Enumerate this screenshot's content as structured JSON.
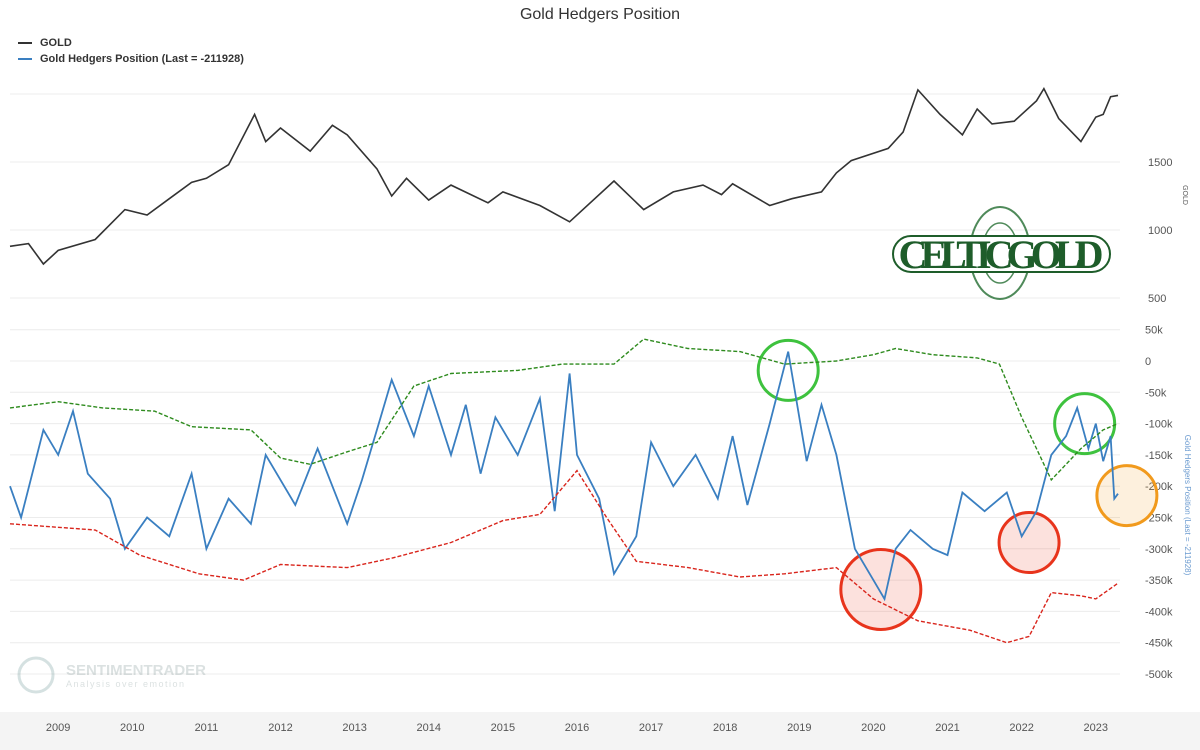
{
  "chart_data": [
    {
      "type": "line",
      "title": "Gold Hedgers Position",
      "ylabel": "GOLD",
      "yticks": [
        500,
        1000,
        1500
      ],
      "ylim": [
        500,
        2050
      ],
      "series": [
        {
          "name": "GOLD",
          "color": "#333333",
          "x": [
            2008.35,
            2008.6,
            2008.8,
            2009.0,
            2009.5,
            2009.9,
            2010.2,
            2010.5,
            2010.8,
            2011.0,
            2011.3,
            2011.65,
            2011.8,
            2012.0,
            2012.4,
            2012.7,
            2012.9,
            2013.3,
            2013.5,
            2013.7,
            2014.0,
            2014.3,
            2014.8,
            2015.0,
            2015.5,
            2015.9,
            2016.5,
            2016.9,
            2017.3,
            2017.7,
            2017.95,
            2018.1,
            2018.6,
            2018.9,
            2019.3,
            2019.5,
            2019.7,
            2020.2,
            2020.4,
            2020.6,
            2020.9,
            2021.2,
            2021.4,
            2021.6,
            2021.9,
            2022.2,
            2022.3,
            2022.5,
            2022.8,
            2023.0,
            2023.1,
            2023.2,
            2023.3
          ],
          "y": [
            880,
            900,
            750,
            850,
            930,
            1150,
            1110,
            1230,
            1350,
            1380,
            1480,
            1850,
            1650,
            1750,
            1580,
            1770,
            1700,
            1450,
            1250,
            1380,
            1220,
            1330,
            1200,
            1280,
            1180,
            1060,
            1360,
            1150,
            1280,
            1330,
            1260,
            1340,
            1180,
            1230,
            1280,
            1420,
            1510,
            1600,
            1720,
            2030,
            1850,
            1700,
            1890,
            1780,
            1800,
            1950,
            2040,
            1820,
            1650,
            1830,
            1850,
            1980,
            1990
          ]
        }
      ]
    },
    {
      "type": "line",
      "ylabel": "Gold Hedgers Position (Last = -211928)",
      "yticks": [
        50000,
        0,
        -50000,
        -100000,
        -150000,
        -200000,
        -250000,
        -300000,
        -350000,
        -400000,
        -450000,
        -500000
      ],
      "ytick_labels": [
        "50k",
        "0",
        "-50k",
        "-100k",
        "-150k",
        "-200k",
        "-250k",
        "-300k",
        "-350k",
        "-400k",
        "-450k",
        "-500k"
      ],
      "ylim": [
        -500000,
        50000
      ],
      "xticks": [
        "2009",
        "2010",
        "2011",
        "2012",
        "2013",
        "2014",
        "2015",
        "2016",
        "2017",
        "2018",
        "2019",
        "2020",
        "2021",
        "2022",
        "2023"
      ],
      "xlim": [
        2008.35,
        2023.3
      ],
      "series": [
        {
          "name": "Gold Hedgers Position (Last = -211928)",
          "color": "#3a7fc1",
          "x": [
            2008.35,
            2008.5,
            2008.8,
            2009.0,
            2009.2,
            2009.4,
            2009.7,
            2009.9,
            2010.2,
            2010.5,
            2010.8,
            2011.0,
            2011.3,
            2011.6,
            2011.8,
            2012.2,
            2012.5,
            2012.9,
            2013.1,
            2013.3,
            2013.5,
            2013.8,
            2014.0,
            2014.3,
            2014.5,
            2014.7,
            2014.9,
            2015.2,
            2015.5,
            2015.7,
            2015.9,
            2016.0,
            2016.3,
            2016.5,
            2016.8,
            2017.0,
            2017.3,
            2017.6,
            2017.9,
            2018.1,
            2018.3,
            2018.6,
            2018.85,
            2019.1,
            2019.3,
            2019.5,
            2019.75,
            2020.0,
            2020.15,
            2020.3,
            2020.5,
            2020.8,
            2021.0,
            2021.2,
            2021.5,
            2021.8,
            2022.0,
            2022.2,
            2022.4,
            2022.6,
            2022.75,
            2022.9,
            2023.0,
            2023.1,
            2023.2,
            2023.25,
            2023.3
          ],
          "y": [
            -200000,
            -250000,
            -110000,
            -150000,
            -80000,
            -180000,
            -220000,
            -300000,
            -250000,
            -280000,
            -180000,
            -300000,
            -220000,
            -260000,
            -150000,
            -230000,
            -140000,
            -260000,
            -190000,
            -110000,
            -30000,
            -120000,
            -40000,
            -150000,
            -70000,
            -180000,
            -90000,
            -150000,
            -60000,
            -240000,
            -20000,
            -150000,
            -220000,
            -340000,
            -280000,
            -130000,
            -200000,
            -150000,
            -220000,
            -120000,
            -230000,
            -100000,
            15000,
            -160000,
            -70000,
            -150000,
            -300000,
            -350000,
            -380000,
            -300000,
            -270000,
            -300000,
            -310000,
            -210000,
            -240000,
            -210000,
            -280000,
            -240000,
            -150000,
            -120000,
            -75000,
            -140000,
            -100000,
            -160000,
            -120000,
            -220000,
            -212000
          ]
        },
        {
          "color": "#2e8b1e",
          "dash": true,
          "x": [
            2008.35,
            2009.0,
            2009.6,
            2010.3,
            2010.8,
            2011.6,
            2012.0,
            2012.4,
            2012.9,
            2013.3,
            2013.8,
            2014.3,
            2015.2,
            2015.8,
            2016.5,
            2016.9,
            2017.5,
            2018.2,
            2018.8,
            2019.5,
            2020.0,
            2020.3,
            2020.8,
            2021.4,
            2021.7,
            2022.0,
            2022.4,
            2022.8,
            2023.1,
            2023.3
          ],
          "y": [
            -75000,
            -65000,
            -75000,
            -80000,
            -105000,
            -110000,
            -155000,
            -165000,
            -145000,
            -130000,
            -40000,
            -20000,
            -15000,
            -5000,
            -5000,
            35000,
            20000,
            15000,
            -5000,
            0,
            10000,
            20000,
            10000,
            5000,
            -5000,
            -90000,
            -190000,
            -140000,
            -110000,
            -100000
          ]
        },
        {
          "color": "#d9251c",
          "dash": true,
          "x": [
            2008.35,
            2009.5,
            2010.1,
            2010.9,
            2011.5,
            2012.0,
            2012.9,
            2013.5,
            2014.3,
            2015.0,
            2015.5,
            2016.0,
            2016.4,
            2016.8,
            2017.5,
            2018.2,
            2018.8,
            2019.5,
            2020.0,
            2020.6,
            2021.3,
            2021.8,
            2022.1,
            2022.4,
            2022.8,
            2023.0,
            2023.3
          ],
          "y": [
            -260000,
            -270000,
            -310000,
            -340000,
            -350000,
            -325000,
            -330000,
            -315000,
            -290000,
            -255000,
            -245000,
            -175000,
            -250000,
            -320000,
            -330000,
            -345000,
            -340000,
            -330000,
            -380000,
            -415000,
            -430000,
            -450000,
            -440000,
            -370000,
            -375000,
            -380000,
            -355000
          ]
        }
      ],
      "annotations": [
        {
          "x": 2018.85,
          "y": -15000,
          "color": "#3ec23e",
          "fill": false
        },
        {
          "x": 2022.85,
          "y": -100000,
          "color": "#3ec23e",
          "fill": false
        },
        {
          "x": 2020.1,
          "y": -365000,
          "color": "#e8341c",
          "fill": true
        },
        {
          "x": 2022.1,
          "y": -290000,
          "color": "#e8341c",
          "fill": true
        },
        {
          "x": 2023.42,
          "y": -215000,
          "color": "#f19a1d",
          "fill": true
        }
      ]
    }
  ],
  "legend": {
    "gold": "GOLD",
    "hedgers": "Gold Hedgers Position (Last = -211928)"
  },
  "logo": {
    "text": "CELTICGOLD"
  },
  "watermark": {
    "name": "SENTIMENTRADER",
    "tagline": "Analysis over emotion"
  }
}
